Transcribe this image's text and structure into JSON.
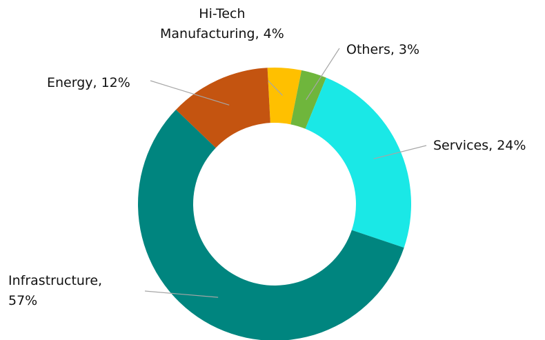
{
  "chart_data": {
    "type": "donut",
    "values": [
      4,
      3,
      24,
      57,
      12
    ],
    "value_labels": [
      "Hi-Tech\nManufacturing, 4%",
      "Others, 3%",
      "Services, 24%",
      "Infrastructure,\n57%",
      "Energy, 12%"
    ],
    "colors": [
      "#ffc000",
      "#6fb63c",
      "#1ae8e6",
      "#00857f",
      "#c45410"
    ]
  }
}
